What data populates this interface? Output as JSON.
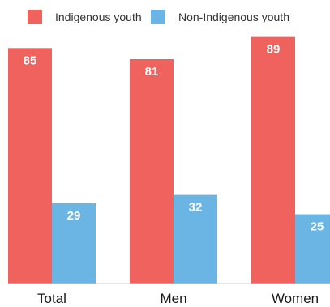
{
  "chart_data": {
    "type": "bar",
    "title": "",
    "xlabel": "",
    "ylabel": "",
    "categories": [
      "Total",
      "Men",
      "Women"
    ],
    "series": [
      {
        "name": "Indigenous youth",
        "values": [
          85,
          81,
          89
        ],
        "color": "#f0625d"
      },
      {
        "name": "Non-Indigenous youth",
        "values": [
          29,
          32,
          25
        ],
        "color": "#6bb5e4"
      }
    ],
    "ylim": [
      0,
      100
    ],
    "grid": false,
    "legend_position": "top",
    "axis_color": "#c8c8c8"
  }
}
